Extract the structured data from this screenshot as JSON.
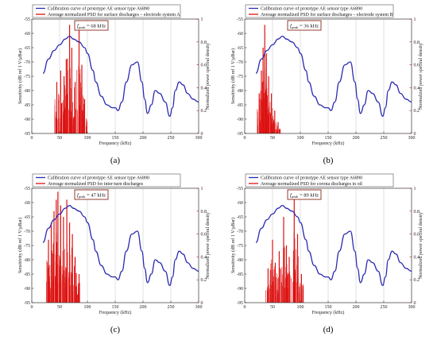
{
  "chart_data": [
    {
      "type": "line",
      "panel_label": "(a)",
      "xlabel": "Frequency (kHz)",
      "ylabel": "Sensitivity (dB ref 1 V/μBar)",
      "ylabel_right": "Normalized power spectral density",
      "xlim": [
        0,
        300
      ],
      "ylim": [
        -95,
        -55
      ],
      "ylim_right": [
        0,
        1
      ],
      "x_ticks": [
        0,
        50,
        100,
        150,
        200,
        250,
        300
      ],
      "y_ticks": [
        -95,
        -90,
        -85,
        -80,
        -75,
        -70,
        -65,
        -60,
        -55
      ],
      "y_ticks_right": [
        0,
        0.2,
        0.4,
        0.6,
        0.8,
        1
      ],
      "legend_position": "top",
      "annotation": {
        "text_main": "f",
        "text_sub": "peak",
        "text_value": " = 68 kHz"
      },
      "series": [
        {
          "name": "Calibration curve of prototype AE sensor type A6890",
          "color": "#2b2bb0",
          "axis": "left",
          "x": [
            20,
            30,
            40,
            50,
            60,
            68,
            75,
            85,
            95,
            100,
            110,
            115,
            125,
            135,
            145,
            150,
            155,
            162,
            170,
            180,
            190,
            198,
            203,
            208,
            215,
            222,
            230,
            240,
            248,
            253,
            258,
            265,
            272,
            280,
            290,
            300
          ],
          "y": [
            -74,
            -69,
            -66,
            -64,
            -62,
            -61,
            -62,
            -63,
            -65,
            -67,
            -73,
            -77,
            -82,
            -85,
            -86,
            -86,
            -87,
            -84,
            -77,
            -71,
            -70,
            -77,
            -83,
            -88,
            -85,
            -80,
            -81,
            -84,
            -89,
            -86,
            -80,
            -77,
            -78,
            -81,
            -83,
            -84
          ]
        },
        {
          "name": "Average normalized PSD for surface discharges – electrode system A",
          "color": "#dd1111",
          "axis": "right",
          "peaks": [
            {
              "x": 45,
              "y": 0.45
            },
            {
              "x": 52,
              "y": 0.55
            },
            {
              "x": 58,
              "y": 0.5
            },
            {
              "x": 62,
              "y": 0.65
            },
            {
              "x": 68,
              "y": 0.95
            },
            {
              "x": 72,
              "y": 0.75
            },
            {
              "x": 78,
              "y": 0.45
            },
            {
              "x": 85,
              "y": 0.9
            },
            {
              "x": 90,
              "y": 0.6
            },
            {
              "x": 95,
              "y": 0.3
            }
          ]
        }
      ]
    },
    {
      "type": "line",
      "panel_label": "(b)",
      "xlabel": "Frequency (kHz)",
      "ylabel": "Sensitivity (dB ref 1 V/μBar)",
      "ylabel_right": "Normalized power spectral density",
      "xlim": [
        0,
        300
      ],
      "ylim": [
        -95,
        -55
      ],
      "ylim_right": [
        0,
        1
      ],
      "x_ticks": [
        0,
        50,
        100,
        150,
        200,
        250,
        300
      ],
      "y_ticks": [
        -95,
        -90,
        -85,
        -80,
        -75,
        -70,
        -65,
        -60,
        -55
      ],
      "y_ticks_right": [
        0,
        0.2,
        0.4,
        0.6,
        0.8,
        1
      ],
      "legend_position": "top",
      "annotation": {
        "text_main": "f",
        "text_sub": "peak",
        "text_value": " = 36 kHz"
      },
      "series": [
        {
          "name": "Calibration curve of prototype AE sensor type A6890",
          "color": "#2b2bb0",
          "axis": "left",
          "x": [
            20,
            30,
            40,
            50,
            60,
            68,
            75,
            85,
            95,
            100,
            110,
            115,
            125,
            135,
            145,
            150,
            155,
            162,
            170,
            180,
            190,
            198,
            203,
            208,
            215,
            222,
            230,
            240,
            248,
            253,
            258,
            265,
            272,
            280,
            290,
            300
          ],
          "y": [
            -74,
            -69,
            -66,
            -64,
            -62,
            -61,
            -62,
            -63,
            -65,
            -67,
            -73,
            -77,
            -82,
            -85,
            -86,
            -86,
            -87,
            -84,
            -77,
            -71,
            -70,
            -77,
            -83,
            -88,
            -85,
            -80,
            -81,
            -84,
            -89,
            -86,
            -80,
            -77,
            -78,
            -81,
            -83,
            -84
          ]
        },
        {
          "name": "Average normalized PSD for surface discharges – electrode system B",
          "color": "#dd1111",
          "axis": "right",
          "peaks": [
            {
              "x": 26,
              "y": 0.35
            },
            {
              "x": 30,
              "y": 0.55
            },
            {
              "x": 33,
              "y": 0.75
            },
            {
              "x": 36,
              "y": 0.95
            },
            {
              "x": 39,
              "y": 0.7
            },
            {
              "x": 43,
              "y": 0.5
            },
            {
              "x": 48,
              "y": 0.35
            },
            {
              "x": 54,
              "y": 0.2
            },
            {
              "x": 60,
              "y": 0.1
            }
          ]
        }
      ]
    },
    {
      "type": "line",
      "panel_label": "(c)",
      "xlabel": "Frequency (kHz)",
      "ylabel": "Sensitivity (dB ref 1 V/μBar)",
      "ylabel_right": "Normalized power spectral density",
      "xlim": [
        0,
        300
      ],
      "ylim": [
        -95,
        -55
      ],
      "ylim_right": [
        0,
        1
      ],
      "x_ticks": [
        0,
        50,
        100,
        150,
        200,
        250,
        300
      ],
      "y_ticks": [
        -95,
        -90,
        -85,
        -80,
        -75,
        -70,
        -65,
        -60,
        -55
      ],
      "y_ticks_right": [
        0,
        0.2,
        0.4,
        0.6,
        0.8,
        1
      ],
      "legend_position": "top",
      "annotation": {
        "text_main": "f",
        "text_sub": "peak",
        "text_value": " = 47 kHz"
      },
      "series": [
        {
          "name": "Calibration curve of prototype AE sensor type A6890",
          "color": "#2b2bb0",
          "axis": "left",
          "x": [
            20,
            30,
            40,
            50,
            60,
            68,
            75,
            85,
            95,
            100,
            110,
            115,
            125,
            135,
            145,
            150,
            155,
            162,
            170,
            180,
            190,
            198,
            203,
            208,
            215,
            222,
            230,
            240,
            248,
            253,
            258,
            265,
            272,
            280,
            290,
            300
          ],
          "y": [
            -74,
            -69,
            -66,
            -64,
            -62,
            -61,
            -62,
            -63,
            -65,
            -67,
            -73,
            -77,
            -82,
            -85,
            -86,
            -86,
            -87,
            -84,
            -77,
            -71,
            -70,
            -77,
            -83,
            -88,
            -85,
            -80,
            -81,
            -84,
            -89,
            -86,
            -80,
            -77,
            -78,
            -81,
            -83,
            -84
          ]
        },
        {
          "name": "Average normalized PSD for inter-turn discharges",
          "color": "#dd1111",
          "axis": "right",
          "peaks": [
            {
              "x": 30,
              "y": 0.55
            },
            {
              "x": 35,
              "y": 0.7
            },
            {
              "x": 40,
              "y": 0.8
            },
            {
              "x": 44,
              "y": 0.9
            },
            {
              "x": 47,
              "y": 0.97
            },
            {
              "x": 52,
              "y": 0.85
            },
            {
              "x": 57,
              "y": 0.75
            },
            {
              "x": 63,
              "y": 0.9
            },
            {
              "x": 68,
              "y": 0.7
            },
            {
              "x": 73,
              "y": 0.6
            },
            {
              "x": 78,
              "y": 0.4
            },
            {
              "x": 85,
              "y": 0.25
            }
          ]
        }
      ]
    },
    {
      "type": "line",
      "panel_label": "(d)",
      "xlabel": "Frequency (kHz)",
      "ylabel": "Sensitivity (dB ref 1 V/μBar)",
      "ylabel_right": "Normalized power spectral density",
      "xlim": [
        0,
        300
      ],
      "ylim": [
        -95,
        -55
      ],
      "ylim_right": [
        0,
        1
      ],
      "x_ticks": [
        0,
        50,
        100,
        150,
        200,
        250,
        300
      ],
      "y_ticks": [
        -95,
        -90,
        -85,
        -80,
        -75,
        -70,
        -65,
        -60,
        -55
      ],
      "y_ticks_right": [
        0,
        0.2,
        0.4,
        0.6,
        0.8,
        1
      ],
      "legend_position": "top",
      "annotation": {
        "text_main": "f",
        "text_sub": "peak",
        "text_value": " = 89 kHz"
      },
      "series": [
        {
          "name": "Calibration curve of prototype AE sensor type A6890",
          "color": "#2b2bb0",
          "axis": "left",
          "x": [
            20,
            30,
            40,
            50,
            60,
            68,
            75,
            85,
            95,
            100,
            110,
            115,
            125,
            135,
            145,
            150,
            155,
            162,
            170,
            180,
            190,
            198,
            203,
            208,
            215,
            222,
            230,
            240,
            248,
            253,
            258,
            265,
            272,
            280,
            290,
            300
          ],
          "y": [
            -74,
            -69,
            -66,
            -64,
            -62,
            -61,
            -62,
            -63,
            -65,
            -67,
            -73,
            -77,
            -82,
            -85,
            -86,
            -86,
            -87,
            -84,
            -77,
            -71,
            -70,
            -77,
            -83,
            -88,
            -85,
            -80,
            -81,
            -84,
            -89,
            -86,
            -80,
            -77,
            -78,
            -81,
            -83,
            -84
          ]
        },
        {
          "name": "Average normalized PSD for corona discharges in oil",
          "color": "#dd1111",
          "axis": "right",
          "peaks": [
            {
              "x": 42,
              "y": 0.3
            },
            {
              "x": 50,
              "y": 0.55
            },
            {
              "x": 55,
              "y": 0.35
            },
            {
              "x": 62,
              "y": 0.45
            },
            {
              "x": 70,
              "y": 0.75
            },
            {
              "x": 75,
              "y": 0.5
            },
            {
              "x": 80,
              "y": 0.4
            },
            {
              "x": 89,
              "y": 0.95
            },
            {
              "x": 95,
              "y": 0.6
            },
            {
              "x": 102,
              "y": 0.25
            }
          ]
        }
      ]
    }
  ]
}
